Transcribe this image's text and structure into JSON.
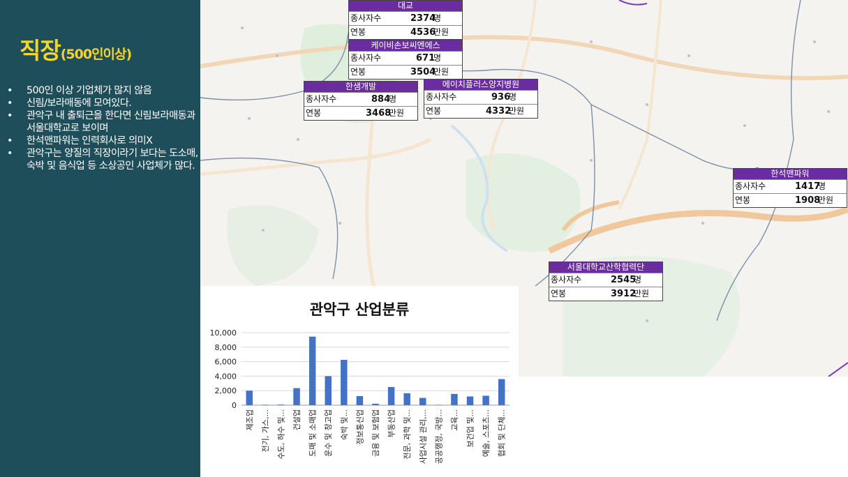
{
  "left": {
    "title_main": "직장",
    "title_sub": "(500인이상)",
    "bullet_char": "•",
    "bullets": [
      "500인 이상 기업체가 많지 않음",
      "신림/보라매동에 모여있다.",
      "관악구 내 출퇴근을 한다면 신림보라매동과 서울대학교로 보이며",
      "한석맨파워는 인력회사로 의미X",
      "관악구는 양질의 직장이라기 보다는 도소매,숙박 및 음식업 등 소상공인 사업체가 많다."
    ]
  },
  "labels": {
    "employees": "종사자수",
    "salary": "연봉",
    "person_unit": "명",
    "salary_unit": "만원"
  },
  "companies": [
    {
      "name": "대교",
      "employees": "2374",
      "salary": "4536"
    },
    {
      "name": "케이비손보씨엔에스",
      "employees": "671",
      "salary": "3504"
    },
    {
      "name": "한샘개발",
      "employees": "884",
      "salary": "3468"
    },
    {
      "name": "에이치플러스양지병원",
      "employees": "936",
      "salary": "4332"
    },
    {
      "name": "한석맨파워",
      "employees": "1417",
      "salary": "1908"
    },
    {
      "name": "서울대학교산학협력단",
      "employees": "2545",
      "salary": "3912"
    }
  ],
  "colors": {
    "panel_bg": "#1f4e5b",
    "title": "#f6d42a",
    "box_header": "#6a2c9e",
    "bar": "#4472c4",
    "map_road": "#f0c89c",
    "map_boundary": "#7a8fa8"
  },
  "chart_data": {
    "type": "bar",
    "title": "관악구 산업분류",
    "categories": [
      "제조업",
      "전기, 가스,...",
      "수도, 하수 및...",
      "건설업",
      "도매 및 소매업",
      "운수 및 창고업",
      "숙박 및...",
      "정보통신업",
      "금융 및 보험업",
      "부동산업",
      "전문, 과학 및...",
      "사업시설 관리,...",
      "공공행정, 국방...",
      "교육...",
      "보건업 및...",
      "예술, 스포츠...",
      "협회 및 단체..."
    ],
    "values": [
      2000,
      60,
      80,
      2350,
      9450,
      4000,
      6250,
      1250,
      200,
      2500,
      1650,
      1000,
      50,
      1550,
      1200,
      1300,
      3600
    ],
    "ylim": [
      0,
      10000
    ],
    "yticks": [
      "0",
      "2,000",
      "4,000",
      "6,000",
      "8,000",
      "10,000"
    ],
    "grid": true,
    "xlabel": "",
    "ylabel": ""
  }
}
